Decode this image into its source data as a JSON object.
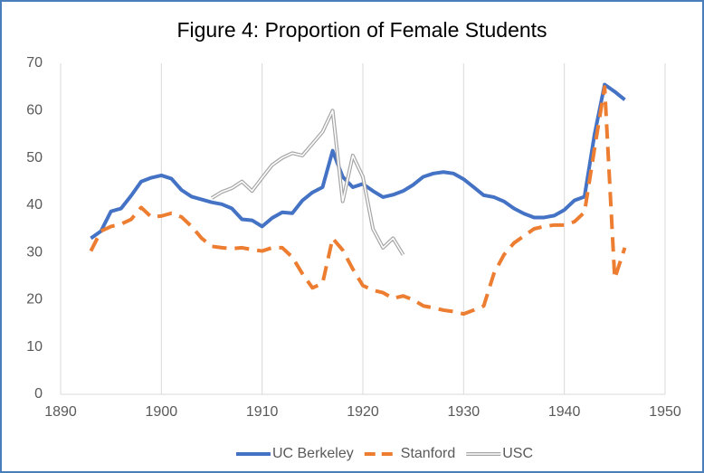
{
  "chart_data": {
    "type": "line",
    "title": "Figure 4: Proportion of Female Students",
    "xlim": [
      1890,
      1950
    ],
    "xticks": [
      1890,
      1900,
      1910,
      1920,
      1930,
      1940,
      1950
    ],
    "ylim": [
      0,
      70
    ],
    "yticks": [
      0,
      10,
      20,
      30,
      40,
      50,
      60,
      70
    ],
    "grid": "x",
    "legend": "bottom",
    "series": [
      {
        "name": "UC Berkeley",
        "color": "#4472c4",
        "line_style": "solid",
        "x": [
          1893,
          1894,
          1895,
          1896,
          1897,
          1898,
          1899,
          1900,
          1901,
          1902,
          1903,
          1904,
          1905,
          1906,
          1907,
          1908,
          1909,
          1910,
          1911,
          1912,
          1913,
          1914,
          1915,
          1916,
          1917,
          1918,
          1919,
          1920,
          1921,
          1922,
          1923,
          1924,
          1925,
          1926,
          1927,
          1928,
          1929,
          1930,
          1931,
          1932,
          1933,
          1934,
          1935,
          1936,
          1937,
          1938,
          1939,
          1940,
          1941,
          1942,
          1943,
          1944,
          1945,
          1946
        ],
        "values": [
          33,
          34.5,
          38.7,
          39.3,
          42,
          45,
          45.8,
          46.3,
          45.6,
          43.2,
          41.8,
          41.2,
          40.6,
          40.2,
          39.3,
          37,
          36.8,
          35.5,
          37.3,
          38.5,
          38.3,
          41,
          42.7,
          43.8,
          51.5,
          46,
          43.8,
          44.5,
          43,
          41.7,
          42.2,
          43,
          44.3,
          46,
          46.7,
          47,
          46.7,
          45.5,
          43.8,
          42.1,
          41.7,
          40.8,
          39.3,
          38.2,
          37.4,
          37.4,
          37.8,
          39,
          41,
          41.8,
          55,
          65.5,
          64,
          62.3
        ]
      },
      {
        "name": "Stanford",
        "color": "#ed7d31",
        "line_style": "dashed",
        "x": [
          1893,
          1894,
          1895,
          1896,
          1897,
          1898,
          1899,
          1900,
          1901,
          1902,
          1903,
          1904,
          1905,
          1906,
          1907,
          1908,
          1909,
          1910,
          1911,
          1912,
          1913,
          1914,
          1915,
          1916,
          1917,
          1918,
          1919,
          1920,
          1921,
          1922,
          1923,
          1924,
          1925,
          1926,
          1927,
          1928,
          1929,
          1930,
          1931,
          1932,
          1933,
          1934,
          1935,
          1936,
          1937,
          1938,
          1939,
          1940,
          1941,
          1942,
          1943,
          1944,
          1945,
          1946
        ],
        "values": [
          30.3,
          34.5,
          35.5,
          36,
          37,
          39.5,
          37.5,
          37.7,
          38.3,
          37.5,
          35.5,
          33,
          31.3,
          31,
          30.8,
          31,
          30.6,
          30.3,
          31,
          31,
          29,
          25.5,
          22.5,
          23.5,
          33,
          30.5,
          26.5,
          23,
          22,
          21.5,
          20.3,
          20.8,
          20,
          18.7,
          18.3,
          17.8,
          17.5,
          17,
          17.8,
          18.7,
          25.5,
          29.5,
          32,
          33.5,
          35,
          35.5,
          35.8,
          35.8,
          36.5,
          38.5,
          52,
          65,
          24.5,
          31
        ]
      },
      {
        "name": "USC",
        "color": "#a5a5a5",
        "line_style": "double",
        "x": [
          1905,
          1906,
          1907,
          1908,
          1909,
          1910,
          1911,
          1912,
          1913,
          1914,
          1915,
          1916,
          1917,
          1918,
          1919,
          1920,
          1921,
          1922,
          1923,
          1924
        ],
        "values": [
          41.5,
          42.8,
          43.6,
          45,
          43,
          45.8,
          48.5,
          50,
          51,
          50.5,
          53,
          55.5,
          60,
          40.8,
          50.5,
          46,
          35,
          31,
          33,
          29.5
        ]
      }
    ]
  }
}
